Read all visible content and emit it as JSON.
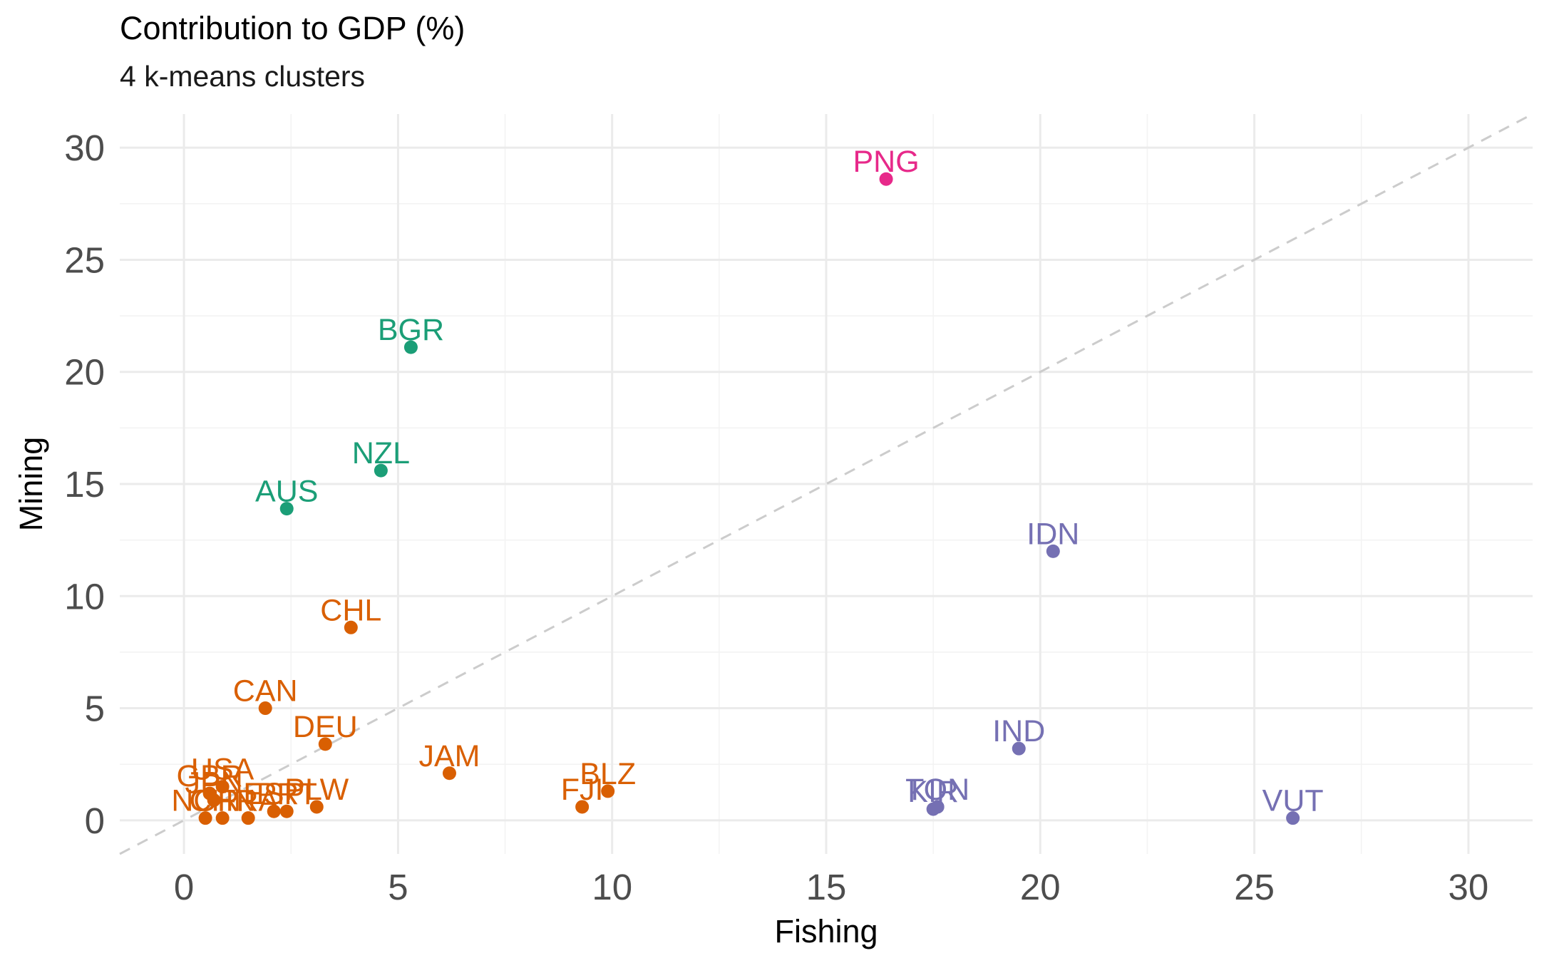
{
  "chart_data": {
    "type": "scatter",
    "title": "Contribution to GDP (%)",
    "subtitle": "4 k-means clusters",
    "xlabel": "Fishing",
    "ylabel": "Mining",
    "xlim": [
      -1.5,
      31.5
    ],
    "ylim": [
      -1.5,
      31.5
    ],
    "x_ticks": [
      0,
      5,
      10,
      15,
      20,
      25,
      30
    ],
    "y_ticks": [
      0,
      5,
      10,
      15,
      20,
      25,
      30
    ],
    "grid": true,
    "legend": "none",
    "reference_line": {
      "type": "y=x",
      "style": "dashed",
      "color": "#cccccc"
    },
    "cluster_colors": [
      "#d95f02",
      "#1b9e77",
      "#7570b3",
      "#e7298a"
    ],
    "points": [
      {
        "label": "PNG",
        "x": 16.4,
        "y": 28.6,
        "cluster": 4
      },
      {
        "label": "BGR",
        "x": 5.3,
        "y": 21.1,
        "cluster": 2
      },
      {
        "label": "NZL",
        "x": 4.6,
        "y": 15.6,
        "cluster": 2
      },
      {
        "label": "AUS",
        "x": 2.4,
        "y": 13.9,
        "cluster": 2
      },
      {
        "label": "IDN",
        "x": 20.3,
        "y": 12.0,
        "cluster": 3
      },
      {
        "label": "IND",
        "x": 19.5,
        "y": 3.2,
        "cluster": 3
      },
      {
        "label": "TON",
        "x": 17.6,
        "y": 0.6,
        "cluster": 3
      },
      {
        "label": "KIR",
        "x": 17.5,
        "y": 0.5,
        "cluster": 3
      },
      {
        "label": "VUT",
        "x": 25.9,
        "y": 0.1,
        "cluster": 3
      },
      {
        "label": "CHL",
        "x": 3.9,
        "y": 8.6,
        "cluster": 1
      },
      {
        "label": "CAN",
        "x": 1.9,
        "y": 5.0,
        "cluster": 1
      },
      {
        "label": "DEU",
        "x": 3.3,
        "y": 3.4,
        "cluster": 1
      },
      {
        "label": "JAM",
        "x": 6.2,
        "y": 2.1,
        "cluster": 1
      },
      {
        "label": "BLZ",
        "x": 9.9,
        "y": 1.3,
        "cluster": 1
      },
      {
        "label": "FJI",
        "x": 9.3,
        "y": 0.6,
        "cluster": 1
      },
      {
        "label": "USA",
        "x": 0.9,
        "y": 1.5,
        "cluster": 1
      },
      {
        "label": "GBR",
        "x": 0.6,
        "y": 1.2,
        "cluster": 1
      },
      {
        "label": "JPN",
        "x": 0.7,
        "y": 0.9,
        "cluster": 1
      },
      {
        "label": "ESP",
        "x": 2.1,
        "y": 0.4,
        "cluster": 1
      },
      {
        "label": "PRT",
        "x": 2.4,
        "y": 0.4,
        "cluster": 1
      },
      {
        "label": "PLW",
        "x": 3.1,
        "y": 0.6,
        "cluster": 1
      },
      {
        "label": "NOR",
        "x": 0.5,
        "y": 0.1,
        "cluster": 1
      },
      {
        "label": "CHN",
        "x": 0.9,
        "y": 0.1,
        "cluster": 1
      },
      {
        "label": "FRA",
        "x": 1.5,
        "y": 0.1,
        "cluster": 1
      }
    ]
  }
}
